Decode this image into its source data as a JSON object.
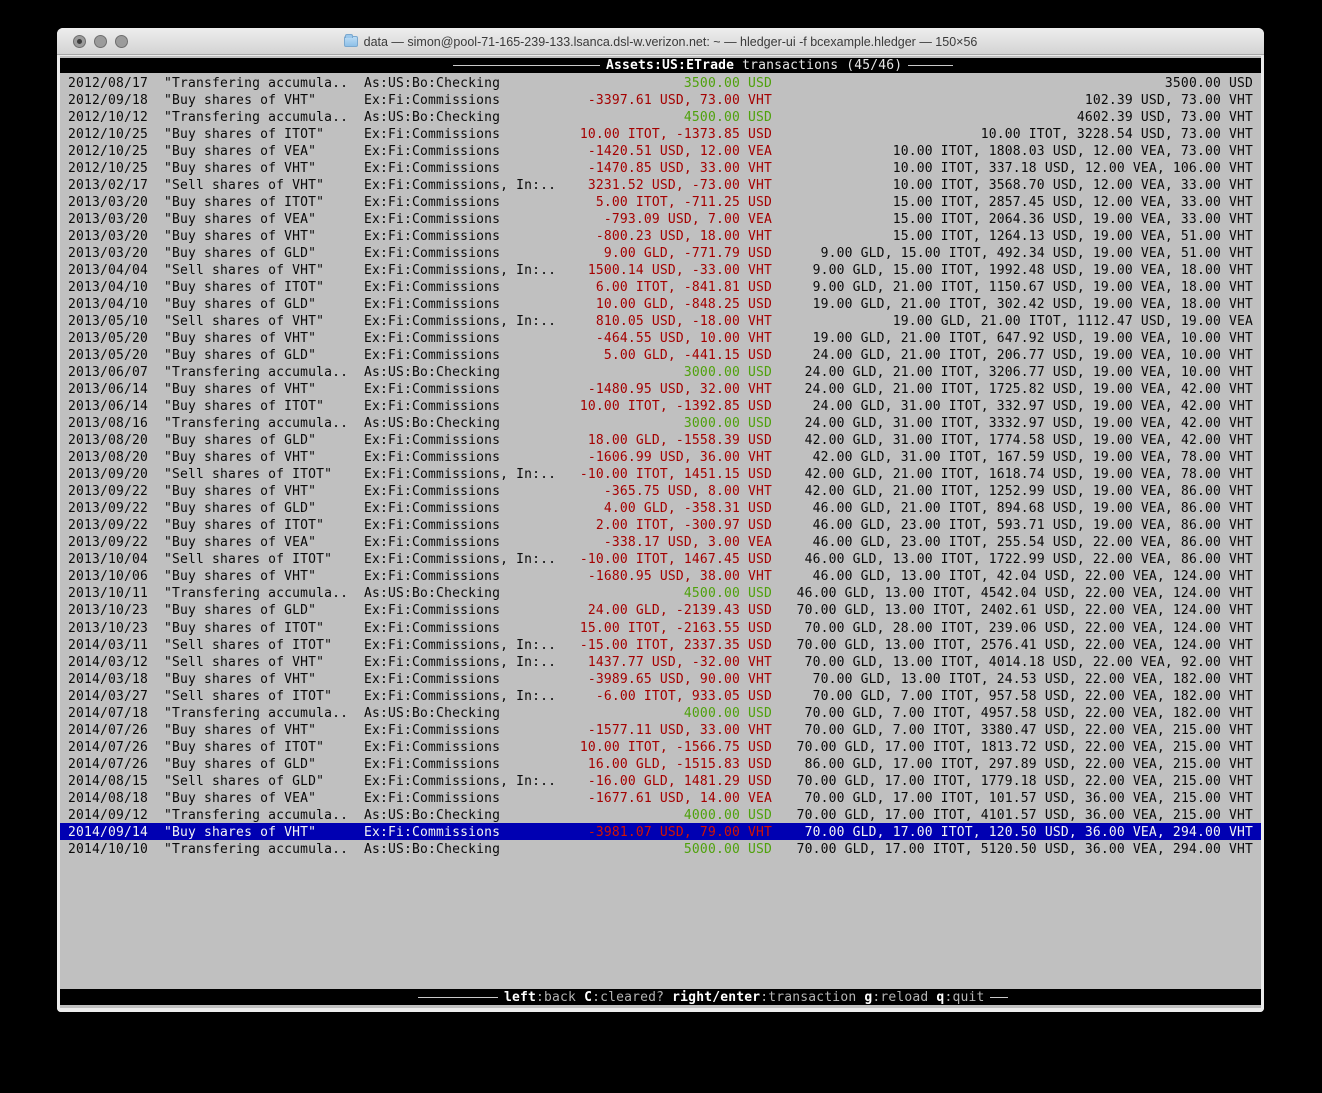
{
  "window": {
    "title": "data — simon@pool-71-165-239-133.lsanca.dsl-w.verizon.net: ~ — hledger-ui -f bcexample.hledger — 150×56"
  },
  "header": {
    "account": "Assets:US:ETrade",
    "label": " transactions (45/46)"
  },
  "footer": {
    "keys": [
      {
        "key": "left",
        "desc": ":back"
      },
      {
        "key": "C",
        "desc": ":cleared?"
      },
      {
        "key": "right/enter",
        "desc": ":transaction"
      },
      {
        "key": "g",
        "desc": ":reload"
      },
      {
        "key": "q",
        "desc": ":quit"
      }
    ]
  },
  "colors": {
    "background": "#c0c0c0",
    "text": "#0a0a0a",
    "amount_red": "#a40000",
    "amount_green": "#4fa10c",
    "selection_background": "#0000b2",
    "selection_text": "#f4f4f4",
    "amount_red_selected": "#d41400",
    "bar_background": "#000000",
    "bar_text_bright": "#ffffff",
    "bar_text_dim": "#b4b4b4"
  },
  "rows": [
    {
      "date": "2012/08/17",
      "desc": "\"Transfering accumula..",
      "account": "As:US:Bo:Checking",
      "amount": "3500.00 USD",
      "amount_color": "green",
      "balance": "3500.00 USD"
    },
    {
      "date": "2012/09/18",
      "desc": "\"Buy shares of VHT\"",
      "account": "Ex:Fi:Commissions",
      "amount": "-3397.61 USD, 73.00 VHT",
      "amount_color": "red",
      "balance": "102.39 USD, 73.00 VHT"
    },
    {
      "date": "2012/10/12",
      "desc": "\"Transfering accumula..",
      "account": "As:US:Bo:Checking",
      "amount": "4500.00 USD",
      "amount_color": "green",
      "balance": "4602.39 USD, 73.00 VHT"
    },
    {
      "date": "2012/10/25",
      "desc": "\"Buy shares of ITOT\"",
      "account": "Ex:Fi:Commissions",
      "amount": "10.00 ITOT, -1373.85 USD",
      "amount_color": "red",
      "balance": "10.00 ITOT, 3228.54 USD, 73.00 VHT"
    },
    {
      "date": "2012/10/25",
      "desc": "\"Buy shares of VEA\"",
      "account": "Ex:Fi:Commissions",
      "amount": "-1420.51 USD, 12.00 VEA",
      "amount_color": "red",
      "balance": "10.00 ITOT, 1808.03 USD, 12.00 VEA, 73.00 VHT"
    },
    {
      "date": "2012/10/25",
      "desc": "\"Buy shares of VHT\"",
      "account": "Ex:Fi:Commissions",
      "amount": "-1470.85 USD, 33.00 VHT",
      "amount_color": "red",
      "balance": "10.00 ITOT, 337.18 USD, 12.00 VEA, 106.00 VHT"
    },
    {
      "date": "2013/02/17",
      "desc": "\"Sell shares of VHT\"",
      "account": "Ex:Fi:Commissions, In:..",
      "amount": "3231.52 USD, -73.00 VHT",
      "amount_color": "red",
      "balance": "10.00 ITOT, 3568.70 USD, 12.00 VEA, 33.00 VHT"
    },
    {
      "date": "2013/03/20",
      "desc": "\"Buy shares of ITOT\"",
      "account": "Ex:Fi:Commissions",
      "amount": "5.00 ITOT, -711.25 USD",
      "amount_color": "red",
      "balance": "15.00 ITOT, 2857.45 USD, 12.00 VEA, 33.00 VHT"
    },
    {
      "date": "2013/03/20",
      "desc": "\"Buy shares of VEA\"",
      "account": "Ex:Fi:Commissions",
      "amount": "-793.09 USD, 7.00 VEA",
      "amount_color": "red",
      "balance": "15.00 ITOT, 2064.36 USD, 19.00 VEA, 33.00 VHT"
    },
    {
      "date": "2013/03/20",
      "desc": "\"Buy shares of VHT\"",
      "account": "Ex:Fi:Commissions",
      "amount": "-800.23 USD, 18.00 VHT",
      "amount_color": "red",
      "balance": "15.00 ITOT, 1264.13 USD, 19.00 VEA, 51.00 VHT"
    },
    {
      "date": "2013/03/20",
      "desc": "\"Buy shares of GLD\"",
      "account": "Ex:Fi:Commissions",
      "amount": "9.00 GLD, -771.79 USD",
      "amount_color": "red",
      "balance": "9.00 GLD, 15.00 ITOT, 492.34 USD, 19.00 VEA, 51.00 VHT"
    },
    {
      "date": "2013/04/04",
      "desc": "\"Sell shares of VHT\"",
      "account": "Ex:Fi:Commissions, In:..",
      "amount": "1500.14 USD, -33.00 VHT",
      "amount_color": "red",
      "balance": "9.00 GLD, 15.00 ITOT, 1992.48 USD, 19.00 VEA, 18.00 VHT"
    },
    {
      "date": "2013/04/10",
      "desc": "\"Buy shares of ITOT\"",
      "account": "Ex:Fi:Commissions",
      "amount": "6.00 ITOT, -841.81 USD",
      "amount_color": "red",
      "balance": "9.00 GLD, 21.00 ITOT, 1150.67 USD, 19.00 VEA, 18.00 VHT"
    },
    {
      "date": "2013/04/10",
      "desc": "\"Buy shares of GLD\"",
      "account": "Ex:Fi:Commissions",
      "amount": "10.00 GLD, -848.25 USD",
      "amount_color": "red",
      "balance": "19.00 GLD, 21.00 ITOT, 302.42 USD, 19.00 VEA, 18.00 VHT"
    },
    {
      "date": "2013/05/10",
      "desc": "\"Sell shares of VHT\"",
      "account": "Ex:Fi:Commissions, In:..",
      "amount": "810.05 USD, -18.00 VHT",
      "amount_color": "red",
      "balance": "19.00 GLD, 21.00 ITOT, 1112.47 USD, 19.00 VEA"
    },
    {
      "date": "2013/05/20",
      "desc": "\"Buy shares of VHT\"",
      "account": "Ex:Fi:Commissions",
      "amount": "-464.55 USD, 10.00 VHT",
      "amount_color": "red",
      "balance": "19.00 GLD, 21.00 ITOT, 647.92 USD, 19.00 VEA, 10.00 VHT"
    },
    {
      "date": "2013/05/20",
      "desc": "\"Buy shares of GLD\"",
      "account": "Ex:Fi:Commissions",
      "amount": "5.00 GLD, -441.15 USD",
      "amount_color": "red",
      "balance": "24.00 GLD, 21.00 ITOT, 206.77 USD, 19.00 VEA, 10.00 VHT"
    },
    {
      "date": "2013/06/07",
      "desc": "\"Transfering accumula..",
      "account": "As:US:Bo:Checking",
      "amount": "3000.00 USD",
      "amount_color": "green",
      "balance": "24.00 GLD, 21.00 ITOT, 3206.77 USD, 19.00 VEA, 10.00 VHT"
    },
    {
      "date": "2013/06/14",
      "desc": "\"Buy shares of VHT\"",
      "account": "Ex:Fi:Commissions",
      "amount": "-1480.95 USD, 32.00 VHT",
      "amount_color": "red",
      "balance": "24.00 GLD, 21.00 ITOT, 1725.82 USD, 19.00 VEA, 42.00 VHT"
    },
    {
      "date": "2013/06/14",
      "desc": "\"Buy shares of ITOT\"",
      "account": "Ex:Fi:Commissions",
      "amount": "10.00 ITOT, -1392.85 USD",
      "amount_color": "red",
      "balance": "24.00 GLD, 31.00 ITOT, 332.97 USD, 19.00 VEA, 42.00 VHT"
    },
    {
      "date": "2013/08/16",
      "desc": "\"Transfering accumula..",
      "account": "As:US:Bo:Checking",
      "amount": "3000.00 USD",
      "amount_color": "green",
      "balance": "24.00 GLD, 31.00 ITOT, 3332.97 USD, 19.00 VEA, 42.00 VHT"
    },
    {
      "date": "2013/08/20",
      "desc": "\"Buy shares of GLD\"",
      "account": "Ex:Fi:Commissions",
      "amount": "18.00 GLD, -1558.39 USD",
      "amount_color": "red",
      "balance": "42.00 GLD, 31.00 ITOT, 1774.58 USD, 19.00 VEA, 42.00 VHT"
    },
    {
      "date": "2013/08/20",
      "desc": "\"Buy shares of VHT\"",
      "account": "Ex:Fi:Commissions",
      "amount": "-1606.99 USD, 36.00 VHT",
      "amount_color": "red",
      "balance": "42.00 GLD, 31.00 ITOT, 167.59 USD, 19.00 VEA, 78.00 VHT"
    },
    {
      "date": "2013/09/20",
      "desc": "\"Sell shares of ITOT\"",
      "account": "Ex:Fi:Commissions, In:..",
      "amount": "-10.00 ITOT, 1451.15 USD",
      "amount_color": "red",
      "balance": "42.00 GLD, 21.00 ITOT, 1618.74 USD, 19.00 VEA, 78.00 VHT"
    },
    {
      "date": "2013/09/22",
      "desc": "\"Buy shares of VHT\"",
      "account": "Ex:Fi:Commissions",
      "amount": "-365.75 USD, 8.00 VHT",
      "amount_color": "red",
      "balance": "42.00 GLD, 21.00 ITOT, 1252.99 USD, 19.00 VEA, 86.00 VHT"
    },
    {
      "date": "2013/09/22",
      "desc": "\"Buy shares of GLD\"",
      "account": "Ex:Fi:Commissions",
      "amount": "4.00 GLD, -358.31 USD",
      "amount_color": "red",
      "balance": "46.00 GLD, 21.00 ITOT, 894.68 USD, 19.00 VEA, 86.00 VHT"
    },
    {
      "date": "2013/09/22",
      "desc": "\"Buy shares of ITOT\"",
      "account": "Ex:Fi:Commissions",
      "amount": "2.00 ITOT, -300.97 USD",
      "amount_color": "red",
      "balance": "46.00 GLD, 23.00 ITOT, 593.71 USD, 19.00 VEA, 86.00 VHT"
    },
    {
      "date": "2013/09/22",
      "desc": "\"Buy shares of VEA\"",
      "account": "Ex:Fi:Commissions",
      "amount": "-338.17 USD, 3.00 VEA",
      "amount_color": "red",
      "balance": "46.00 GLD, 23.00 ITOT, 255.54 USD, 22.00 VEA, 86.00 VHT"
    },
    {
      "date": "2013/10/04",
      "desc": "\"Sell shares of ITOT\"",
      "account": "Ex:Fi:Commissions, In:..",
      "amount": "-10.00 ITOT, 1467.45 USD",
      "amount_color": "red",
      "balance": "46.00 GLD, 13.00 ITOT, 1722.99 USD, 22.00 VEA, 86.00 VHT"
    },
    {
      "date": "2013/10/06",
      "desc": "\"Buy shares of VHT\"",
      "account": "Ex:Fi:Commissions",
      "amount": "-1680.95 USD, 38.00 VHT",
      "amount_color": "red",
      "balance": "46.00 GLD, 13.00 ITOT, 42.04 USD, 22.00 VEA, 124.00 VHT"
    },
    {
      "date": "2013/10/11",
      "desc": "\"Transfering accumula..",
      "account": "As:US:Bo:Checking",
      "amount": "4500.00 USD",
      "amount_color": "green",
      "balance": "46.00 GLD, 13.00 ITOT, 4542.04 USD, 22.00 VEA, 124.00 VHT"
    },
    {
      "date": "2013/10/23",
      "desc": "\"Buy shares of GLD\"",
      "account": "Ex:Fi:Commissions",
      "amount": "24.00 GLD, -2139.43 USD",
      "amount_color": "red",
      "balance": "70.00 GLD, 13.00 ITOT, 2402.61 USD, 22.00 VEA, 124.00 VHT"
    },
    {
      "date": "2013/10/23",
      "desc": "\"Buy shares of ITOT\"",
      "account": "Ex:Fi:Commissions",
      "amount": "15.00 ITOT, -2163.55 USD",
      "amount_color": "red",
      "balance": "70.00 GLD, 28.00 ITOT, 239.06 USD, 22.00 VEA, 124.00 VHT"
    },
    {
      "date": "2014/03/11",
      "desc": "\"Sell shares of ITOT\"",
      "account": "Ex:Fi:Commissions, In:..",
      "amount": "-15.00 ITOT, 2337.35 USD",
      "amount_color": "red",
      "balance": "70.00 GLD, 13.00 ITOT, 2576.41 USD, 22.00 VEA, 124.00 VHT"
    },
    {
      "date": "2014/03/12",
      "desc": "\"Sell shares of VHT\"",
      "account": "Ex:Fi:Commissions, In:..",
      "amount": "1437.77 USD, -32.00 VHT",
      "amount_color": "red",
      "balance": "70.00 GLD, 13.00 ITOT, 4014.18 USD, 22.00 VEA, 92.00 VHT"
    },
    {
      "date": "2014/03/18",
      "desc": "\"Buy shares of VHT\"",
      "account": "Ex:Fi:Commissions",
      "amount": "-3989.65 USD, 90.00 VHT",
      "amount_color": "red",
      "balance": "70.00 GLD, 13.00 ITOT, 24.53 USD, 22.00 VEA, 182.00 VHT"
    },
    {
      "date": "2014/03/27",
      "desc": "\"Sell shares of ITOT\"",
      "account": "Ex:Fi:Commissions, In:..",
      "amount": "-6.00 ITOT, 933.05 USD",
      "amount_color": "red",
      "balance": "70.00 GLD, 7.00 ITOT, 957.58 USD, 22.00 VEA, 182.00 VHT"
    },
    {
      "date": "2014/07/18",
      "desc": "\"Transfering accumula..",
      "account": "As:US:Bo:Checking",
      "amount": "4000.00 USD",
      "amount_color": "green",
      "balance": "70.00 GLD, 7.00 ITOT, 4957.58 USD, 22.00 VEA, 182.00 VHT"
    },
    {
      "date": "2014/07/26",
      "desc": "\"Buy shares of VHT\"",
      "account": "Ex:Fi:Commissions",
      "amount": "-1577.11 USD, 33.00 VHT",
      "amount_color": "red",
      "balance": "70.00 GLD, 7.00 ITOT, 3380.47 USD, 22.00 VEA, 215.00 VHT"
    },
    {
      "date": "2014/07/26",
      "desc": "\"Buy shares of ITOT\"",
      "account": "Ex:Fi:Commissions",
      "amount": "10.00 ITOT, -1566.75 USD",
      "amount_color": "red",
      "balance": "70.00 GLD, 17.00 ITOT, 1813.72 USD, 22.00 VEA, 215.00 VHT"
    },
    {
      "date": "2014/07/26",
      "desc": "\"Buy shares of GLD\"",
      "account": "Ex:Fi:Commissions",
      "amount": "16.00 GLD, -1515.83 USD",
      "amount_color": "red",
      "balance": "86.00 GLD, 17.00 ITOT, 297.89 USD, 22.00 VEA, 215.00 VHT"
    },
    {
      "date": "2014/08/15",
      "desc": "\"Sell shares of GLD\"",
      "account": "Ex:Fi:Commissions, In:..",
      "amount": "-16.00 GLD, 1481.29 USD",
      "amount_color": "red",
      "balance": "70.00 GLD, 17.00 ITOT, 1779.18 USD, 22.00 VEA, 215.00 VHT"
    },
    {
      "date": "2014/08/18",
      "desc": "\"Buy shares of VEA\"",
      "account": "Ex:Fi:Commissions",
      "amount": "-1677.61 USD, 14.00 VEA",
      "amount_color": "red",
      "balance": "70.00 GLD, 17.00 ITOT, 101.57 USD, 36.00 VEA, 215.00 VHT"
    },
    {
      "date": "2014/09/12",
      "desc": "\"Transfering accumula..",
      "account": "As:US:Bo:Checking",
      "amount": "4000.00 USD",
      "amount_color": "green",
      "balance": "70.00 GLD, 17.00 ITOT, 4101.57 USD, 36.00 VEA, 215.00 VHT"
    },
    {
      "date": "2014/09/14",
      "desc": "\"Buy shares of VHT\"",
      "account": "Ex:Fi:Commissions",
      "amount": "-3981.07 USD, 79.00 VHT",
      "amount_color": "red",
      "balance": "70.00 GLD, 17.00 ITOT, 120.50 USD, 36.00 VEA, 294.00 VHT",
      "selected": true
    },
    {
      "date": "2014/10/10",
      "desc": "\"Transfering accumula..",
      "account": "As:US:Bo:Checking",
      "amount": "5000.00 USD",
      "amount_color": "green",
      "balance": "70.00 GLD, 17.00 ITOT, 5120.50 USD, 36.00 VEA, 294.00 VHT"
    }
  ]
}
